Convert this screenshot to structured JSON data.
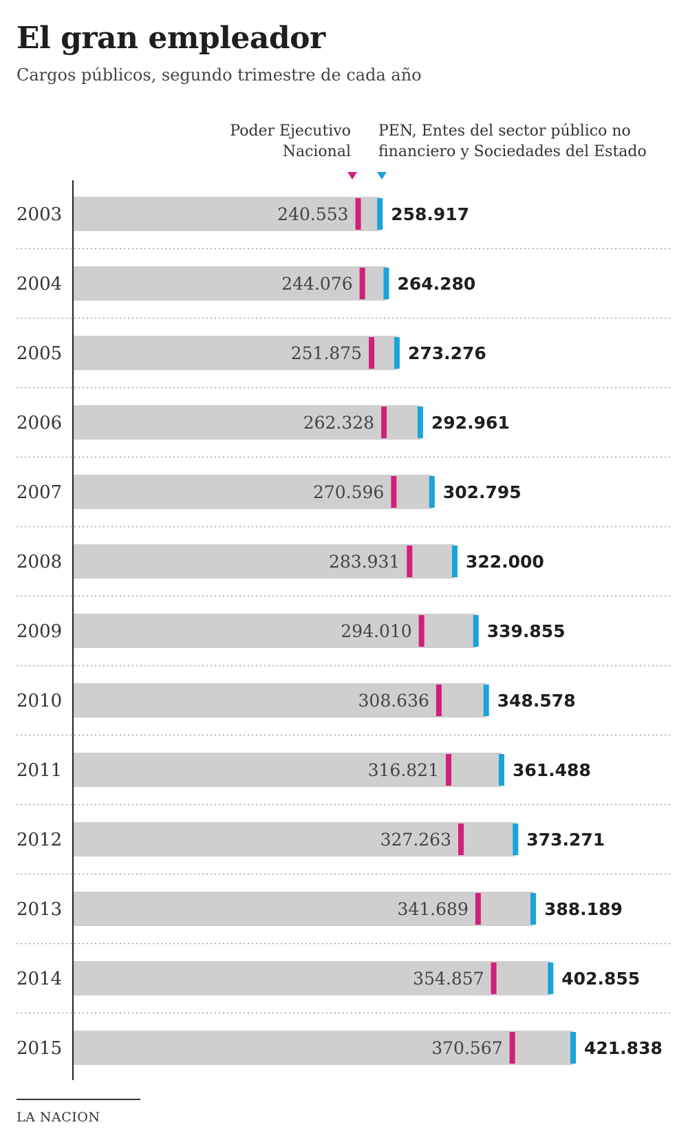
{
  "header": {
    "title": "El gran empleador",
    "subtitle": "Cargos públicos, segundo trimestre de cada año"
  },
  "legend": {
    "pen_label_line1": "Poder Ejecutivo",
    "pen_label_line2": "Nacional",
    "entes_label_line1": "PEN, Entes del sector público no",
    "entes_label_line2": "financiero y Sociedades del Estado"
  },
  "footer": {
    "source": "LA NACION"
  },
  "colors": {
    "bar": "#cfcfcf",
    "pen_marker": "#d0207a",
    "entes_marker": "#1aa3d8",
    "axis": "#222222",
    "separator": "#9a9a9a"
  },
  "chart_data": {
    "type": "bar",
    "orientation": "horizontal",
    "title": "El gran empleador",
    "subtitle": "Cargos públicos, segundo trimestre de cada año",
    "categories": [
      "2003",
      "2004",
      "2005",
      "2006",
      "2007",
      "2008",
      "2009",
      "2010",
      "2011",
      "2012",
      "2013",
      "2014",
      "2015"
    ],
    "series": [
      {
        "name": "Poder Ejecutivo Nacional",
        "values": [
          240553,
          244076,
          251875,
          262328,
          270596,
          283931,
          294010,
          308636,
          316821,
          327263,
          341689,
          354857,
          370567
        ],
        "labels": [
          "240.553",
          "244.076",
          "251.875",
          "262.328",
          "270.596",
          "283.931",
          "294.010",
          "308.636",
          "316.821",
          "327.263",
          "341.689",
          "354.857",
          "370.567"
        ]
      },
      {
        "name": "PEN, Entes del sector público no financiero y Sociedades del Estado",
        "values": [
          258917,
          264280,
          273276,
          292961,
          302795,
          322000,
          339855,
          348578,
          361488,
          373271,
          388189,
          402855,
          421838
        ],
        "labels": [
          "258.917",
          "264.280",
          "273.276",
          "292.961",
          "302.795",
          "322.000",
          "339.855",
          "348.578",
          "361.488",
          "373.271",
          "388.189",
          "402.855",
          "421.838"
        ]
      }
    ],
    "xlim": [
      0,
      421838
    ],
    "grid": false,
    "legend_position": "top"
  }
}
